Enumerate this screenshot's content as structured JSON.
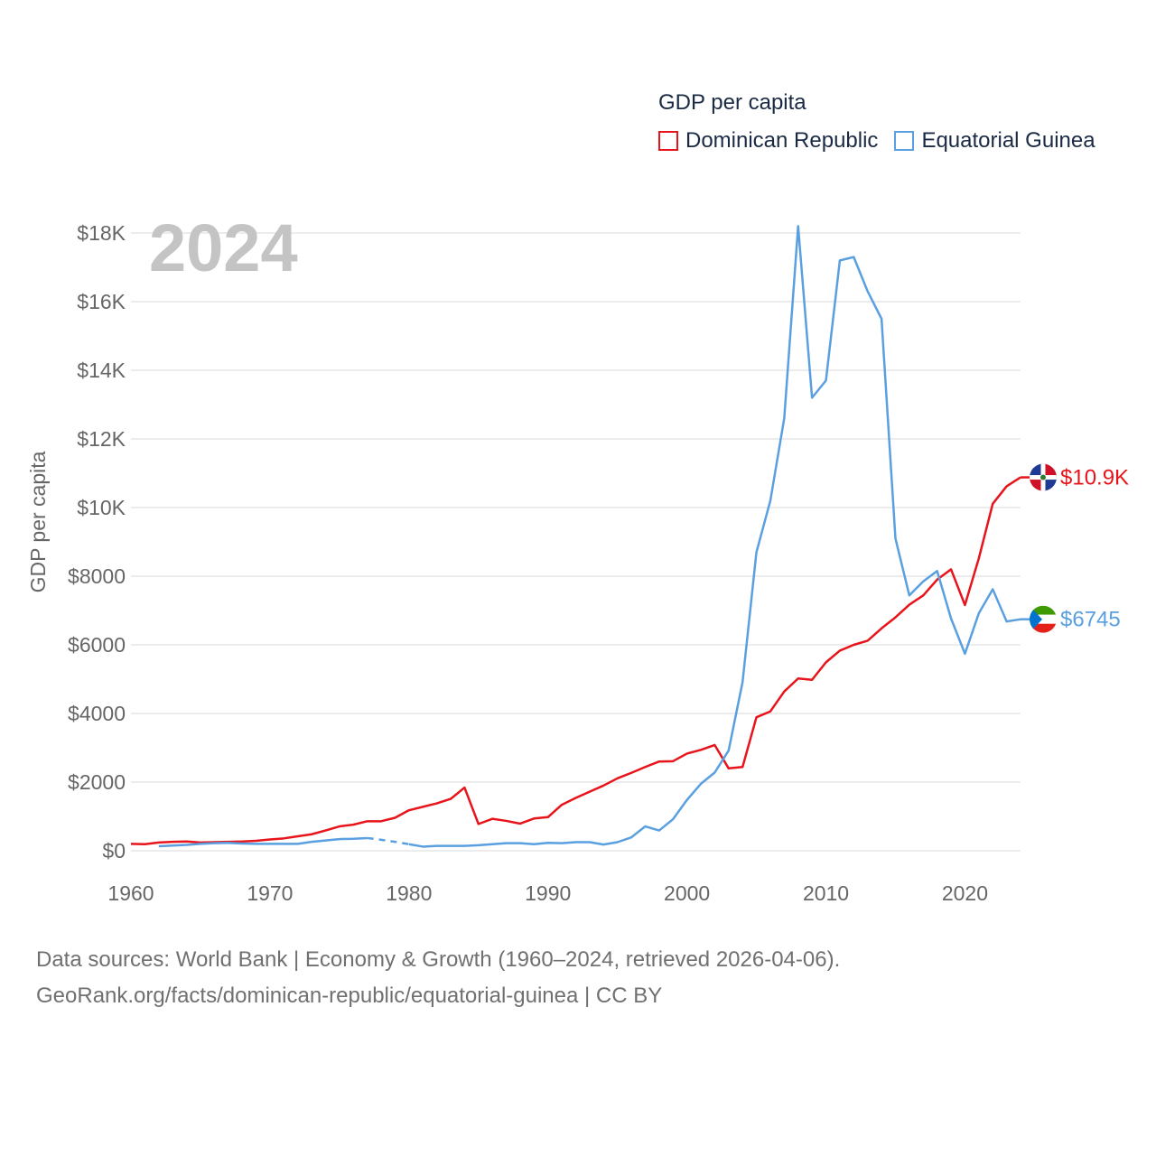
{
  "legend": {
    "title": "GDP per capita",
    "items": [
      {
        "label": "Dominican Republic",
        "color": "#e8141b"
      },
      {
        "label": "Equatorial Guinea",
        "color": "#5aa0e0"
      }
    ]
  },
  "year_label": "2024",
  "footer": {
    "line1": "Data sources: World Bank | Economy & Growth (1960–2024, retrieved 2026-04-06).",
    "line2": "GeoRank.org/facts/dominican-republic/equatorial-guinea | CC BY"
  },
  "chart_data": {
    "type": "line",
    "title": "GDP per capita",
    "xlabel": "",
    "ylabel": "GDP per capita",
    "xlim": [
      1960,
      2024
    ],
    "ylim": [
      0,
      18000
    ],
    "x_ticks": [
      1960,
      1970,
      1980,
      1990,
      2000,
      2010,
      2020
    ],
    "x_tick_labels": [
      "1960",
      "1970",
      "1980",
      "1990",
      "2000",
      "2010",
      "2020"
    ],
    "y_ticks": [
      0,
      2000,
      4000,
      6000,
      8000,
      10000,
      12000,
      14000,
      16000,
      18000
    ],
    "y_tick_labels": [
      "$0",
      "$2000",
      "$4000",
      "$6000",
      "$8000",
      "$10K",
      "$12K",
      "$14K",
      "$16K",
      "$18K"
    ],
    "grid": true,
    "series": [
      {
        "name": "Dominican Republic",
        "color": "#e8141b",
        "end_label": "$10.9K",
        "x": [
          1960,
          1961,
          1962,
          1963,
          1964,
          1965,
          1966,
          1967,
          1968,
          1969,
          1970,
          1971,
          1972,
          1973,
          1974,
          1975,
          1976,
          1977,
          1978,
          1979,
          1980,
          1981,
          1982,
          1983,
          1984,
          1985,
          1986,
          1987,
          1988,
          1989,
          1990,
          1991,
          1992,
          1993,
          1994,
          1995,
          1996,
          1997,
          1998,
          1999,
          2000,
          2001,
          2002,
          2003,
          2004,
          2005,
          2006,
          2007,
          2008,
          2009,
          2010,
          2011,
          2012,
          2013,
          2014,
          2015,
          2016,
          2017,
          2018,
          2019,
          2020,
          2021,
          2022,
          2023,
          2024
        ],
        "y": [
          200,
          190,
          240,
          260,
          270,
          240,
          250,
          260,
          270,
          290,
          330,
          360,
          420,
          480,
          590,
          710,
          760,
          860,
          860,
          960,
          1180,
          1280,
          1380,
          1510,
          1840,
          780,
          930,
          870,
          790,
          940,
          980,
          1340,
          1540,
          1720,
          1900,
          2110,
          2270,
          2440,
          2600,
          2610,
          2830,
          2940,
          3080,
          2400,
          2440,
          3890,
          4060,
          4640,
          5020,
          4980,
          5490,
          5830,
          6000,
          6120,
          6480,
          6800,
          7170,
          7440,
          7900,
          8200,
          7160,
          8520,
          10110,
          10620,
          10880
        ]
      },
      {
        "name": "Equatorial Guinea",
        "color": "#5aa0e0",
        "end_label": "$6745",
        "x": [
          1962,
          1963,
          1964,
          1965,
          1966,
          1967,
          1968,
          1969,
          1970,
          1971,
          1972,
          1973,
          1974,
          1975,
          1976,
          1977,
          1978,
          1979,
          1980,
          1981,
          1982,
          1983,
          1984,
          1985,
          1986,
          1987,
          1988,
          1989,
          1990,
          1991,
          1992,
          1993,
          1994,
          1995,
          1996,
          1997,
          1998,
          1999,
          2000,
          2001,
          2002,
          2003,
          2004,
          2005,
          2006,
          2007,
          2008,
          2009,
          2010,
          2011,
          2012,
          2013,
          2014,
          2015,
          2016,
          2017,
          2018,
          2019,
          2020,
          2021,
          2022,
          2023,
          2024
        ],
        "y": [
          130,
          150,
          170,
          200,
          220,
          230,
          210,
          200,
          200,
          200,
          200,
          260,
          300,
          340,
          350,
          370,
          320,
          260,
          190,
          120,
          140,
          140,
          140,
          160,
          190,
          220,
          220,
          190,
          230,
          220,
          250,
          250,
          180,
          250,
          390,
          710,
          590,
          920,
          1480,
          1950,
          2280,
          2920,
          4910,
          8700,
          10200,
          12600,
          18200,
          13200,
          13700,
          17200,
          17300,
          16300,
          15500,
          9100,
          7440,
          7850,
          8150,
          6770,
          5740,
          6920,
          7620,
          6680,
          6745
        ],
        "dashed_segment": [
          1977,
          1980
        ]
      }
    ]
  }
}
